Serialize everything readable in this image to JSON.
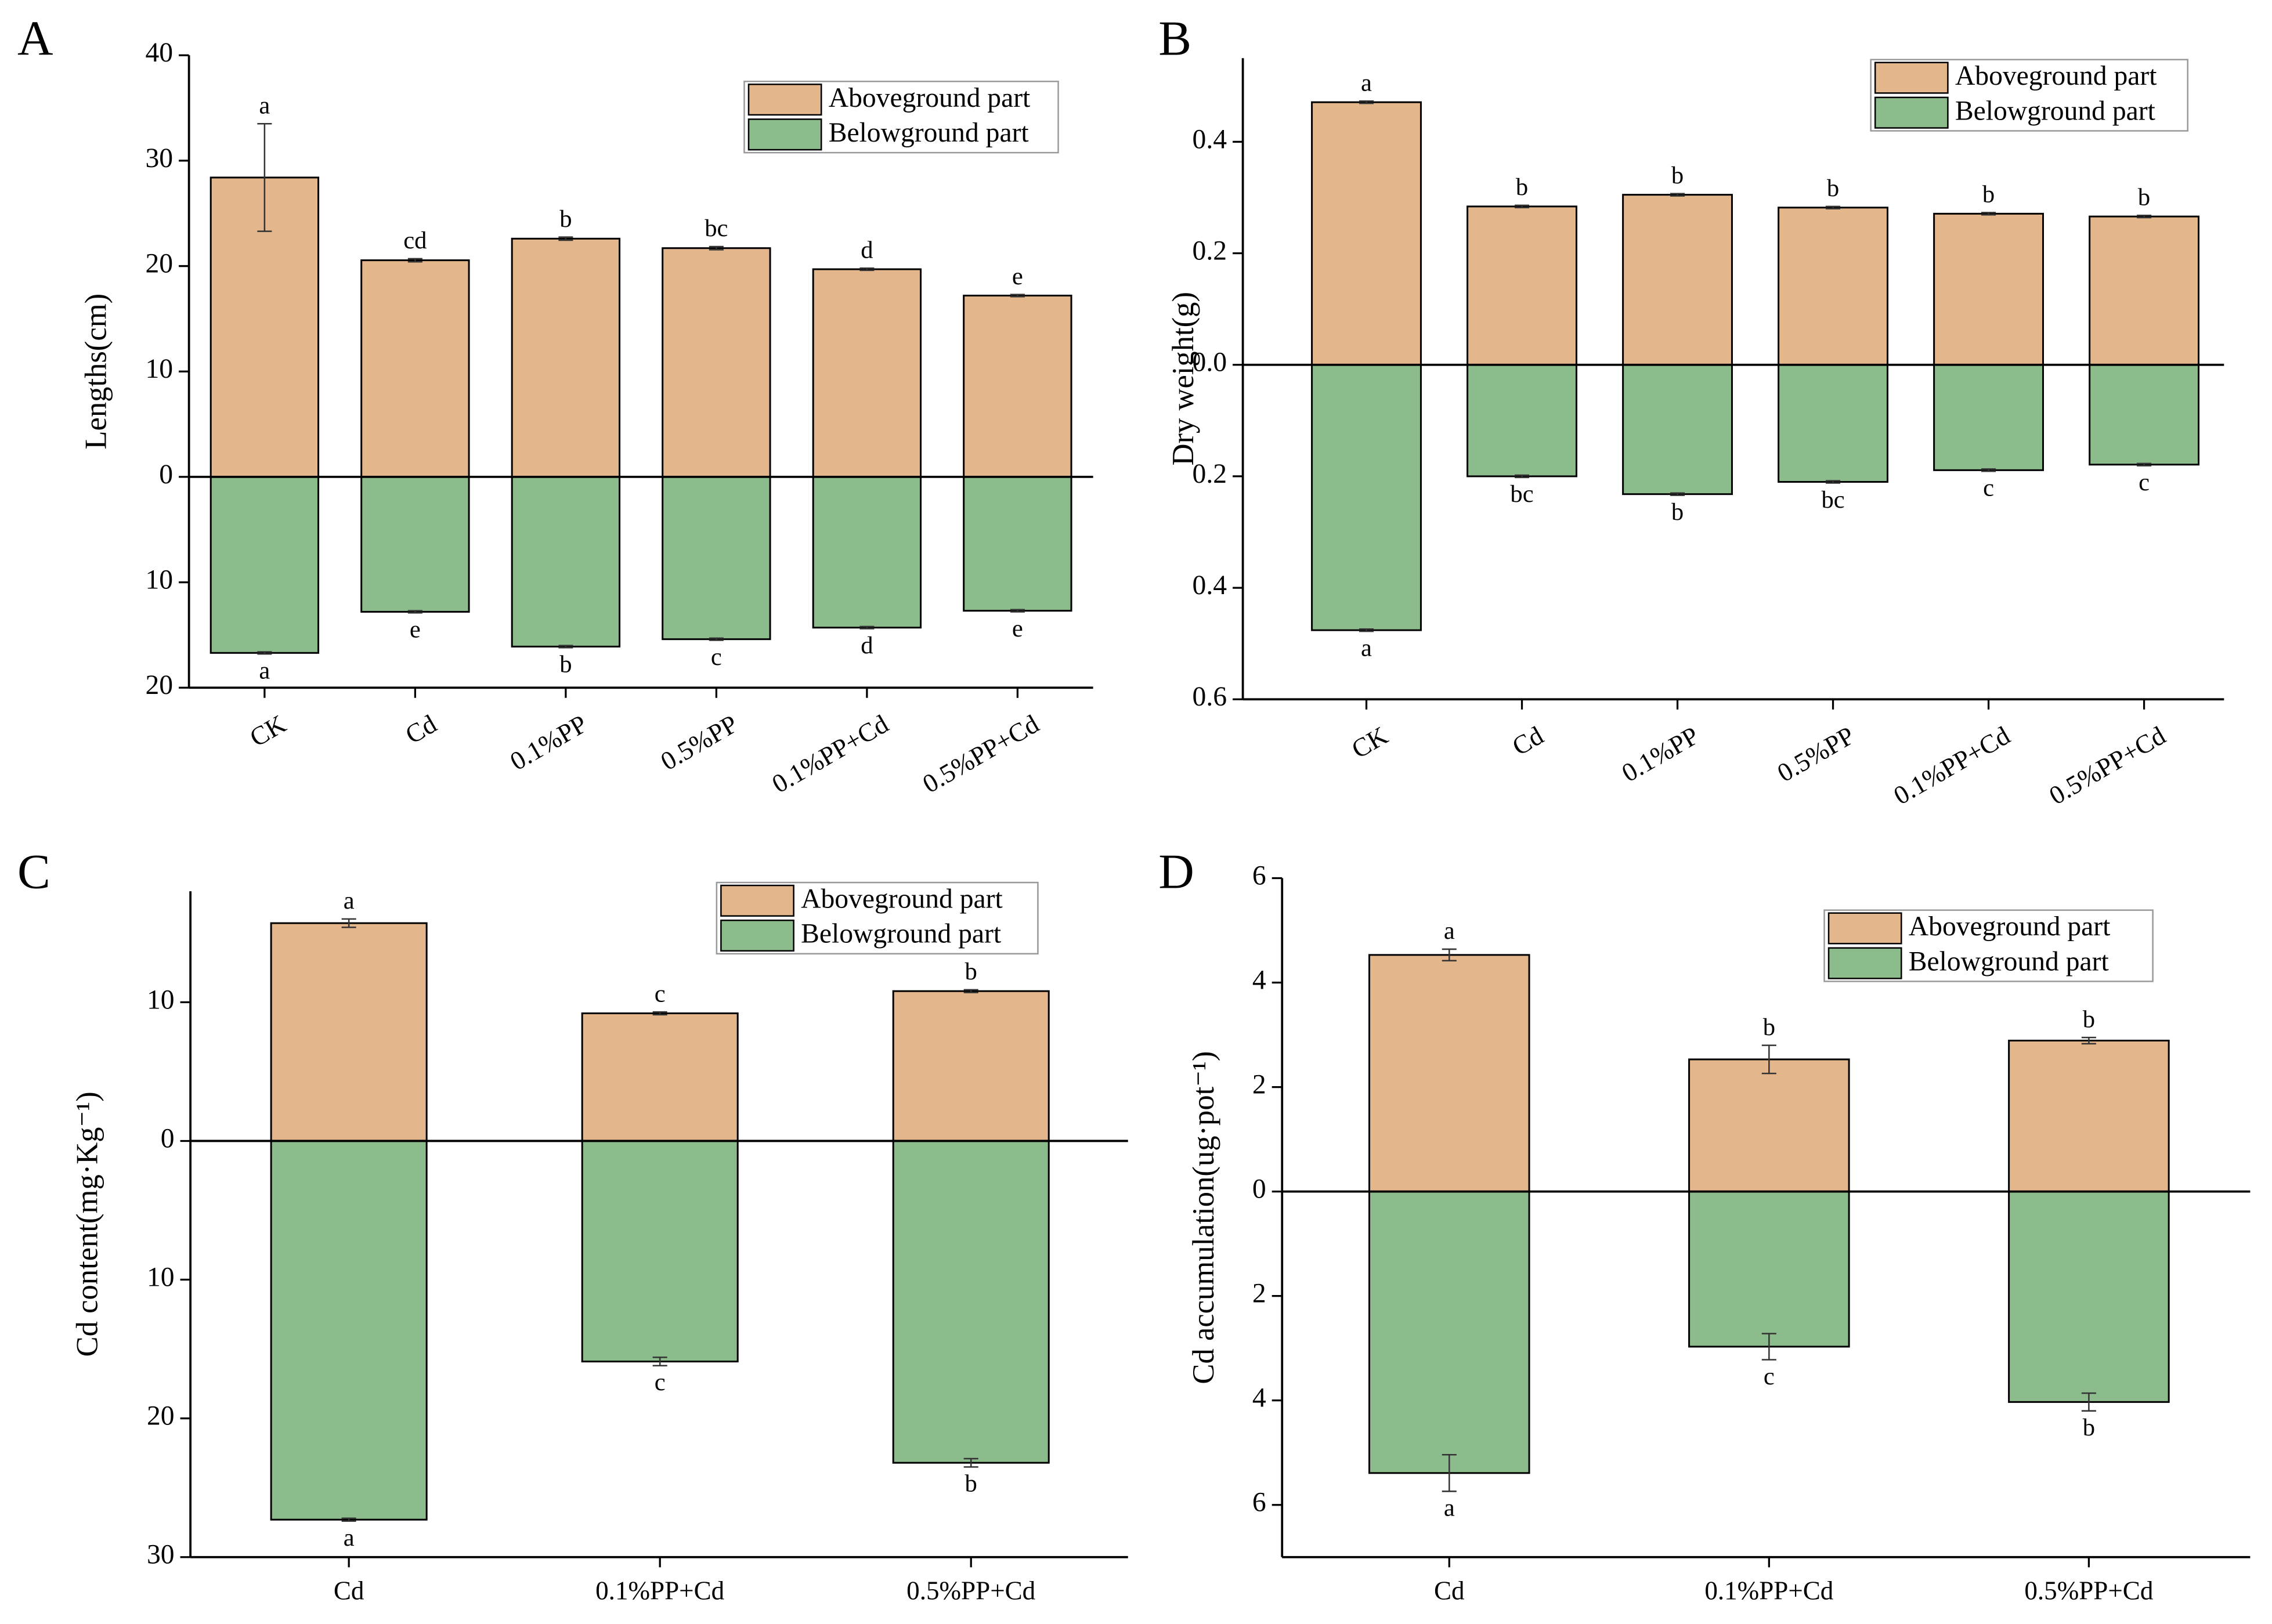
{
  "chart_data": [
    {
      "type": "bar",
      "title": "A",
      "ylabel": "Lengths(cm)",
      "categories": [
        "CK",
        "Cd",
        "0.1%PP",
        "0.5%PP",
        "0.1%PP+Cd",
        "0.5%PP+Cd"
      ],
      "series": [
        {
          "name": "Aboveground part",
          "color": "#e3b68c",
          "values": [
            28.4,
            20.55,
            22.6,
            21.7,
            19.7,
            17.2
          ],
          "errors": [
            5.1,
            0.15,
            0.15,
            0.15,
            0.1,
            0.1
          ],
          "letters": [
            "a",
            "cd",
            "b",
            "bc",
            "d",
            "e"
          ]
        },
        {
          "name": "Belowground part",
          "color": "#8cbb8c",
          "values": [
            -16.7,
            -12.8,
            -16.1,
            -15.4,
            -14.3,
            -12.7
          ],
          "errors": [
            0.1,
            0.1,
            0.1,
            0.1,
            0.1,
            0.1
          ],
          "letters": [
            "a",
            "e",
            "b",
            "c",
            "d",
            "e"
          ]
        }
      ],
      "ylim": [
        -20,
        40
      ],
      "yticks": [
        40,
        30,
        20,
        10,
        0,
        {
          "value": -10,
          "label": "10"
        },
        {
          "value": -20,
          "label": "20"
        }
      ],
      "legend": "upper right"
    },
    {
      "type": "bar",
      "title": "B",
      "ylabel": "Dry weight(g)",
      "categories": [
        "CK",
        "Cd",
        "0.1%PP",
        "0.5%PP",
        "0.1%PP+Cd",
        "0.5%PP+Cd"
      ],
      "series": [
        {
          "name": "Aboveground part",
          "color": "#e3b68c",
          "values": [
            0.471,
            0.284,
            0.305,
            0.282,
            0.271,
            0.266
          ],
          "errors": [
            0.002,
            0.002,
            0.002,
            0.002,
            0.002,
            0.002
          ],
          "letters": [
            "a",
            "b",
            "b",
            "b",
            "b",
            "b"
          ]
        },
        {
          "name": "Belowground part",
          "color": "#8cbb8c",
          "values": [
            -0.476,
            -0.2,
            -0.232,
            -0.21,
            -0.189,
            -0.179
          ],
          "errors": [
            0.002,
            0.002,
            0.002,
            0.002,
            0.002,
            0.002
          ],
          "letters": [
            "a",
            "bc",
            "b",
            "bc",
            "c",
            "c"
          ]
        }
      ],
      "ylim": [
        -0.6,
        0.55
      ],
      "yticks": [
        0.4,
        0.2,
        {
          "value": 0,
          "label": "0.0"
        },
        {
          "value": -0.2,
          "label": "0.2"
        },
        {
          "value": -0.4,
          "label": "0.4"
        },
        {
          "value": -0.6,
          "label": "0.6"
        }
      ],
      "legend": "upper right"
    },
    {
      "type": "bar",
      "title": "C",
      "ylabel": "Cd content(mg·Kg⁻¹)",
      "categories": [
        "Cd",
        "0.1%PP+Cd",
        "0.5%PP+Cd"
      ],
      "series": [
        {
          "name": "Aboveground part",
          "color": "#e3b68c",
          "values": [
            15.7,
            9.2,
            10.8
          ],
          "errors": [
            0.3,
            0.1,
            0.1
          ],
          "letters": [
            "a",
            "c",
            "b"
          ]
        },
        {
          "name": "Belowground part",
          "color": "#8cbb8c",
          "values": [
            -27.3,
            -15.9,
            -23.2
          ],
          "errors": [
            0.1,
            0.3,
            0.3
          ],
          "letters": [
            "a",
            "c",
            "b"
          ]
        }
      ],
      "ylim": [
        -30,
        18
      ],
      "yticks": [
        10,
        0,
        {
          "value": -10,
          "label": "10"
        },
        {
          "value": -20,
          "label": "20"
        },
        {
          "value": -30,
          "label": "30"
        }
      ],
      "legend": "upper right"
    },
    {
      "type": "bar",
      "title": "D",
      "ylabel": "Cd accumulation(ug·pot⁻¹)",
      "categories": [
        "Cd",
        "0.1%PP+Cd",
        "0.5%PP+Cd"
      ],
      "series": [
        {
          "name": "Aboveground part",
          "color": "#e3b68c",
          "values": [
            4.53,
            2.53,
            2.89
          ],
          "errors": [
            0.11,
            0.27,
            0.06
          ],
          "letters": [
            "a",
            "b",
            "b"
          ]
        },
        {
          "name": "Belowground part",
          "color": "#8cbb8c",
          "values": [
            -5.39,
            -2.97,
            -4.03
          ],
          "errors": [
            0.35,
            0.25,
            0.17
          ],
          "letters": [
            "a",
            "c",
            "b"
          ]
        }
      ],
      "ylim": [
        -7,
        6
      ],
      "yticks": [
        6,
        4,
        2,
        0,
        {
          "value": -2,
          "label": "2"
        },
        {
          "value": -4,
          "label": "4"
        },
        {
          "value": -6,
          "label": "6"
        }
      ],
      "legend": "upper right"
    }
  ]
}
